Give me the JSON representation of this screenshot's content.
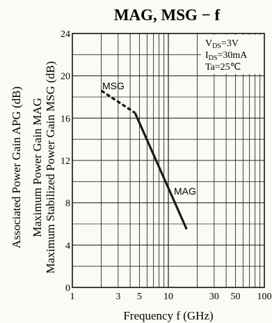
{
  "chart_data": {
    "type": "line",
    "title": "MAG, MSG − f",
    "xlabel": "Frequency  f (GHz)",
    "ylabel_lines": [
      "Maximum Stabilized Power Gain  MSG (dB)",
      "Maximum  Power  Gain  MAG",
      "Associated Power Gain  APG (dB)"
    ],
    "x_scale": "log",
    "xlim": [
      1,
      100
    ],
    "ylim": [
      0,
      24
    ],
    "x_ticks": [
      {
        "value": 1,
        "label": "1"
      },
      {
        "value": 3,
        "label": "3"
      },
      {
        "value": 5,
        "label": "5"
      },
      {
        "value": 10,
        "label": "10"
      },
      {
        "value": 30,
        "label": "30"
      },
      {
        "value": 50,
        "label": "50"
      },
      {
        "value": 100,
        "label": "100"
      }
    ],
    "y_ticks": [
      {
        "value": 0,
        "label": "0"
      },
      {
        "value": 4,
        "label": "4"
      },
      {
        "value": 8,
        "label": "8"
      },
      {
        "value": 12,
        "label": "12"
      },
      {
        "value": 16,
        "label": "16"
      },
      {
        "value": 20,
        "label": "20"
      },
      {
        "value": 24,
        "label": "24"
      }
    ],
    "grid": true,
    "conditions": [
      "V DS=3V",
      "I DS=30mA",
      "Ta=25℃"
    ],
    "series": [
      {
        "name": "MSG",
        "style": "dashed",
        "x": [
          2.0,
          4.5
        ],
        "y": [
          18.6,
          16.5
        ]
      },
      {
        "name": "MAG",
        "style": "solid",
        "x": [
          4.5,
          15.5
        ],
        "y": [
          16.5,
          5.5
        ]
      }
    ],
    "colors": {
      "line": "#1a1a1a",
      "grid": "#2a2a2a",
      "background": "#fbfaf6"
    }
  }
}
